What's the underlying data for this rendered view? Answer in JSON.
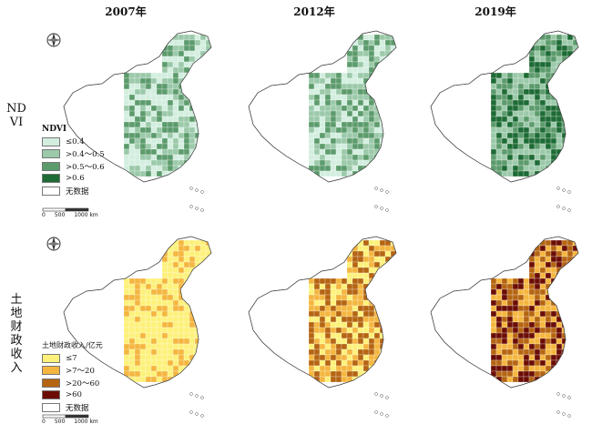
{
  "years": [
    "2007年",
    "2012年",
    "2019年"
  ],
  "row_labels": [
    "NDVI",
    "土地财政收入"
  ],
  "ndvi_legend": {
    "title": "NDVI",
    "items": [
      {
        "label": "≤0.4",
        "color": "#d3eedf"
      },
      {
        "label": ">0.4～0.5",
        "color": "#9bc9a9"
      },
      {
        "label": ">0.5～0.6",
        "color": "#5c9b6c"
      },
      {
        "label": ">0.6",
        "color": "#1e6b35"
      },
      {
        "label": "无数据",
        "color": "#ffffff"
      }
    ],
    "scale": [
      "0",
      "500",
      "1000 km"
    ]
  },
  "land_legend": {
    "title": "土地财政收入/亿元",
    "items": [
      {
        "label": "≤7",
        "color": "#fdf17a"
      },
      {
        "label": ">7～20",
        "color": "#f4b63f"
      },
      {
        "label": ">20～60",
        "color": "#b56512"
      },
      {
        "label": ">60",
        "color": "#6b0d05"
      },
      {
        "label": "无数据",
        "color": "#ffffff"
      }
    ],
    "scale": [
      "0",
      "500",
      "1000 km"
    ]
  }
}
